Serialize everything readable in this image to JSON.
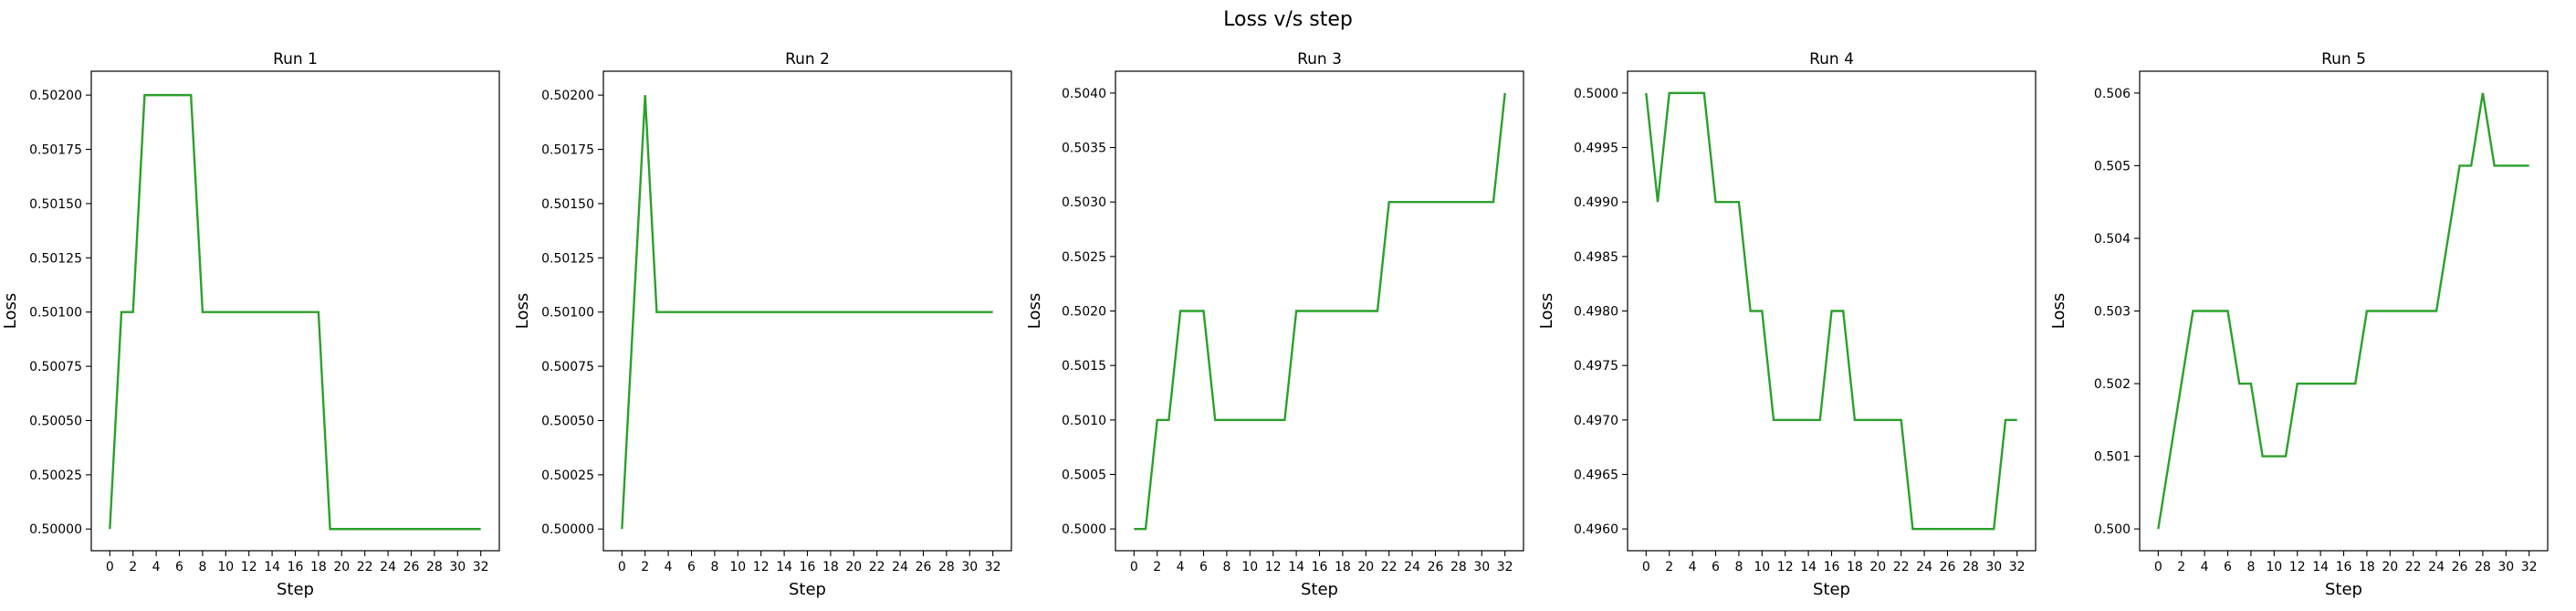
{
  "figure": {
    "suptitle": "Loss v/s step"
  },
  "chart_data": [
    {
      "type": "line",
      "title": "Run 1",
      "xlabel": "Step",
      "ylabel": "Loss",
      "xlim": [
        -1.6,
        33.6
      ],
      "ylim": [
        0.4999,
        0.50211
      ],
      "xticks": [
        0,
        2,
        4,
        6,
        8,
        10,
        12,
        14,
        16,
        18,
        20,
        22,
        24,
        26,
        28,
        30,
        32
      ],
      "yticks": [
        0.5,
        0.50025,
        0.5005,
        0.50075,
        0.501,
        0.50125,
        0.5015,
        0.50175,
        0.502
      ],
      "ytick_labels": [
        "0.50000",
        "0.50025",
        "0.50050",
        "0.50075",
        "0.50100",
        "0.50125",
        "0.50150",
        "0.50175",
        "0.50200"
      ],
      "series": [
        {
          "color": "#2ca02c",
          "x": [
            0,
            1,
            2,
            3,
            4,
            5,
            6,
            7,
            8,
            9,
            10,
            11,
            12,
            13,
            14,
            15,
            16,
            17,
            18,
            19,
            20,
            21,
            22,
            23,
            24,
            25,
            26,
            27,
            28,
            29,
            30,
            31,
            32
          ],
          "y": [
            0.5,
            0.501,
            0.501,
            0.502,
            0.502,
            0.502,
            0.502,
            0.502,
            0.501,
            0.501,
            0.501,
            0.501,
            0.501,
            0.501,
            0.501,
            0.501,
            0.501,
            0.501,
            0.501,
            0.5,
            0.5,
            0.5,
            0.5,
            0.5,
            0.5,
            0.5,
            0.5,
            0.5,
            0.5,
            0.5,
            0.5,
            0.5,
            0.5
          ]
        }
      ]
    },
    {
      "type": "line",
      "title": "Run 2",
      "xlabel": "Step",
      "ylabel": "Loss",
      "xlim": [
        -1.6,
        33.6
      ],
      "ylim": [
        0.4999,
        0.50211
      ],
      "xticks": [
        0,
        2,
        4,
        6,
        8,
        10,
        12,
        14,
        16,
        18,
        20,
        22,
        24,
        26,
        28,
        30,
        32
      ],
      "yticks": [
        0.5,
        0.50025,
        0.5005,
        0.50075,
        0.501,
        0.50125,
        0.5015,
        0.50175,
        0.502
      ],
      "ytick_labels": [
        "0.50000",
        "0.50025",
        "0.50050",
        "0.50075",
        "0.50100",
        "0.50125",
        "0.50150",
        "0.50175",
        "0.50200"
      ],
      "series": [
        {
          "color": "#2ca02c",
          "x": [
            0,
            1,
            2,
            3,
            4,
            5,
            6,
            7,
            8,
            9,
            10,
            11,
            12,
            13,
            14,
            15,
            16,
            17,
            18,
            19,
            20,
            21,
            22,
            23,
            24,
            25,
            26,
            27,
            28,
            29,
            30,
            31,
            32
          ],
          "y": [
            0.5,
            0.501,
            0.502,
            0.501,
            0.501,
            0.501,
            0.501,
            0.501,
            0.501,
            0.501,
            0.501,
            0.501,
            0.501,
            0.501,
            0.501,
            0.501,
            0.501,
            0.501,
            0.501,
            0.501,
            0.501,
            0.501,
            0.501,
            0.501,
            0.501,
            0.501,
            0.501,
            0.501,
            0.501,
            0.501,
            0.501,
            0.501,
            0.501
          ]
        }
      ]
    },
    {
      "type": "line",
      "title": "Run 3",
      "xlabel": "Step",
      "ylabel": "Loss",
      "xlim": [
        -1.6,
        33.6
      ],
      "ylim": [
        0.4998,
        0.5042
      ],
      "xticks": [
        0,
        2,
        4,
        6,
        8,
        10,
        12,
        14,
        16,
        18,
        20,
        22,
        24,
        26,
        28,
        30,
        32
      ],
      "yticks": [
        0.5,
        0.5005,
        0.501,
        0.5015,
        0.502,
        0.5025,
        0.503,
        0.5035,
        0.504
      ],
      "ytick_labels": [
        "0.5000",
        "0.5005",
        "0.5010",
        "0.5015",
        "0.5020",
        "0.5025",
        "0.5030",
        "0.5035",
        "0.5040"
      ],
      "series": [
        {
          "color": "#2ca02c",
          "x": [
            0,
            1,
            2,
            3,
            4,
            5,
            6,
            7,
            8,
            9,
            10,
            11,
            12,
            13,
            14,
            15,
            16,
            17,
            18,
            19,
            20,
            21,
            22,
            23,
            24,
            25,
            26,
            27,
            28,
            29,
            30,
            31,
            32
          ],
          "y": [
            0.5,
            0.5,
            0.501,
            0.501,
            0.502,
            0.502,
            0.502,
            0.501,
            0.501,
            0.501,
            0.501,
            0.501,
            0.501,
            0.501,
            0.502,
            0.502,
            0.502,
            0.502,
            0.502,
            0.502,
            0.502,
            0.502,
            0.503,
            0.503,
            0.503,
            0.503,
            0.503,
            0.503,
            0.503,
            0.503,
            0.503,
            0.503,
            0.504
          ]
        }
      ]
    },
    {
      "type": "line",
      "title": "Run 4",
      "xlabel": "Step",
      "ylabel": "Loss",
      "xlim": [
        -1.6,
        33.6
      ],
      "ylim": [
        0.4958,
        0.5002
      ],
      "xticks": [
        0,
        2,
        4,
        6,
        8,
        10,
        12,
        14,
        16,
        18,
        20,
        22,
        24,
        26,
        28,
        30,
        32
      ],
      "yticks": [
        0.496,
        0.4965,
        0.497,
        0.4975,
        0.498,
        0.4985,
        0.499,
        0.4995,
        0.5
      ],
      "ytick_labels": [
        "0.4960",
        "0.4965",
        "0.4970",
        "0.4975",
        "0.4980",
        "0.4985",
        "0.4990",
        "0.4995",
        "0.5000"
      ],
      "series": [
        {
          "color": "#2ca02c",
          "x": [
            0,
            1,
            2,
            3,
            4,
            5,
            6,
            7,
            8,
            9,
            10,
            11,
            12,
            13,
            14,
            15,
            16,
            17,
            18,
            19,
            20,
            21,
            22,
            23,
            24,
            25,
            26,
            27,
            28,
            29,
            30,
            31,
            32
          ],
          "y": [
            0.5,
            0.499,
            0.5,
            0.5,
            0.5,
            0.5,
            0.499,
            0.499,
            0.499,
            0.498,
            0.498,
            0.497,
            0.497,
            0.497,
            0.497,
            0.497,
            0.498,
            0.498,
            0.497,
            0.497,
            0.497,
            0.497,
            0.497,
            0.496,
            0.496,
            0.496,
            0.496,
            0.496,
            0.496,
            0.496,
            0.496,
            0.497,
            0.497
          ]
        }
      ]
    },
    {
      "type": "line",
      "title": "Run 5",
      "xlabel": "Step",
      "ylabel": "Loss",
      "xlim": [
        -1.6,
        33.6
      ],
      "ylim": [
        0.4997,
        0.5063
      ],
      "xticks": [
        0,
        2,
        4,
        6,
        8,
        10,
        12,
        14,
        16,
        18,
        20,
        22,
        24,
        26,
        28,
        30,
        32
      ],
      "yticks": [
        0.5,
        0.501,
        0.502,
        0.503,
        0.504,
        0.505,
        0.506
      ],
      "ytick_labels": [
        "0.500",
        "0.501",
        "0.502",
        "0.503",
        "0.504",
        "0.505",
        "0.506"
      ],
      "series": [
        {
          "color": "#2ca02c",
          "x": [
            0,
            1,
            2,
            3,
            4,
            5,
            6,
            7,
            8,
            9,
            10,
            11,
            12,
            13,
            14,
            15,
            16,
            17,
            18,
            19,
            20,
            21,
            22,
            23,
            24,
            25,
            26,
            27,
            28,
            29,
            30,
            31,
            32
          ],
          "y": [
            0.5,
            0.501,
            0.502,
            0.503,
            0.503,
            0.503,
            0.503,
            0.502,
            0.502,
            0.501,
            0.501,
            0.501,
            0.502,
            0.502,
            0.502,
            0.502,
            0.502,
            0.502,
            0.503,
            0.503,
            0.503,
            0.503,
            0.503,
            0.503,
            0.503,
            0.504,
            0.505,
            0.505,
            0.506,
            0.505,
            0.505,
            0.505,
            0.505
          ]
        }
      ]
    }
  ]
}
